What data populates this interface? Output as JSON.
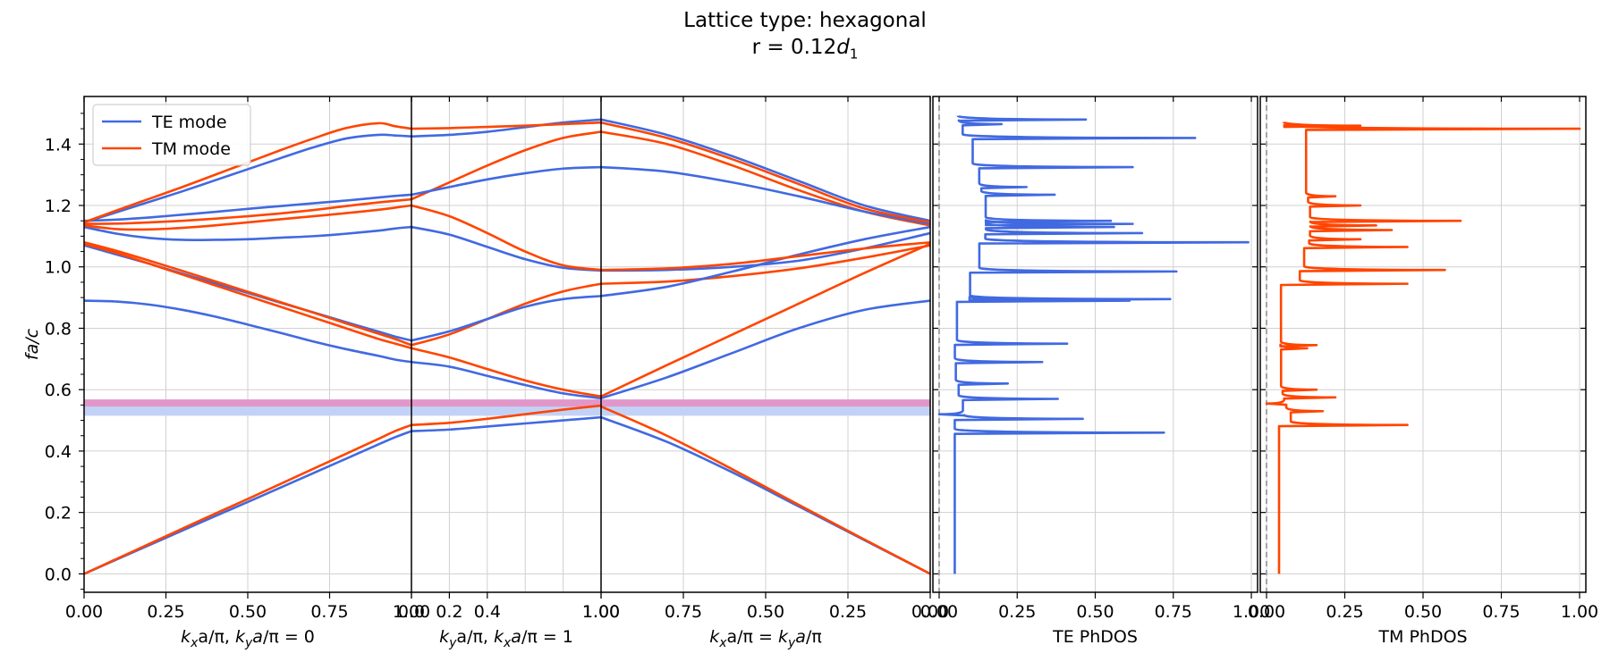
{
  "title": {
    "line1": "Lattice type: hexagonal",
    "line2_prefix": "r = 0.12",
    "line2_var": "d",
    "line2_sub": "1"
  },
  "colors": {
    "te": "#4169e1",
    "tm": "#ff4500",
    "gap_te": "#c2d2f7",
    "gap_tm": "#e394c6",
    "grid": "#d0d0d0"
  },
  "chart_data": [
    {
      "type": "line",
      "name": "band-structure",
      "ylabel": "fa/c",
      "ylim": [
        -0.06,
        1.555
      ],
      "yticks": [
        "0.0",
        "0.2",
        "0.4",
        "0.6",
        "0.8",
        "1.0",
        "1.2",
        "1.4"
      ],
      "legend": {
        "placement": "top-left",
        "entries": [
          "TE mode",
          "TM mode"
        ]
      },
      "bandgaps": [
        {
          "mode": "TE",
          "ymin": 0.515,
          "ymax": 0.568
        },
        {
          "mode": "TM",
          "ymin": 0.545,
          "ymax": 0.568
        }
      ],
      "segments": [
        {
          "xlabel": "k_xa/π, k_ya/π = 0",
          "xrange": [
            0,
            1
          ],
          "xticks": [
            "0.00",
            "0.25",
            "0.50",
            "0.75",
            "1.00"
          ],
          "x": [
            0,
            0.1,
            0.2,
            0.3,
            0.4,
            0.5,
            0.6,
            0.7,
            0.8,
            0.9,
            0.95,
            1.0
          ],
          "series": [
            {
              "mode": "TE",
              "values": [
                0.0,
                0.047,
                0.094,
                0.141,
                0.188,
                0.234,
                0.281,
                0.328,
                0.375,
                0.422,
                0.445,
                0.465
              ]
            },
            {
              "mode": "TM",
              "values": [
                0.0,
                0.049,
                0.098,
                0.147,
                0.196,
                0.244,
                0.293,
                0.342,
                0.391,
                0.44,
                0.465,
                0.485
              ]
            },
            {
              "mode": "TE",
              "values": [
                0.89,
                0.887,
                0.877,
                0.86,
                0.838,
                0.812,
                0.785,
                0.757,
                0.732,
                0.71,
                0.698,
                0.69
              ]
            },
            {
              "mode": "TE",
              "values": [
                1.07,
                1.04,
                1.01,
                0.978,
                0.946,
                0.915,
                0.883,
                0.852,
                0.82,
                0.789,
                0.773,
                0.76
              ]
            },
            {
              "mode": "TM",
              "values": [
                1.075,
                1.045,
                1.01,
                0.975,
                0.94,
                0.905,
                0.87,
                0.835,
                0.8,
                0.765,
                0.75,
                0.735
              ]
            },
            {
              "mode": "TM",
              "values": [
                1.08,
                1.052,
                1.02,
                0.987,
                0.953,
                0.919,
                0.885,
                0.851,
                0.816,
                0.782,
                0.765,
                0.745
              ]
            },
            {
              "mode": "TE",
              "values": [
                1.13,
                1.108,
                1.094,
                1.088,
                1.088,
                1.09,
                1.095,
                1.1,
                1.108,
                1.118,
                1.125,
                1.13
              ]
            },
            {
              "mode": "TM",
              "values": [
                1.135,
                1.123,
                1.122,
                1.127,
                1.135,
                1.145,
                1.155,
                1.165,
                1.175,
                1.186,
                1.193,
                1.2
              ]
            },
            {
              "mode": "TM",
              "values": [
                1.14,
                1.141,
                1.145,
                1.15,
                1.157,
                1.165,
                1.174,
                1.185,
                1.198,
                1.21,
                1.215,
                1.22
              ]
            },
            {
              "mode": "TE",
              "values": [
                1.15,
                1.154,
                1.161,
                1.17,
                1.179,
                1.189,
                1.198,
                1.207,
                1.216,
                1.226,
                1.231,
                1.235
              ]
            },
            {
              "mode": "TE",
              "values": [
                1.145,
                1.178,
                1.212,
                1.246,
                1.282,
                1.318,
                1.354,
                1.389,
                1.418,
                1.43,
                1.428,
                1.425
              ]
            },
            {
              "mode": "TM",
              "values": [
                1.145,
                1.184,
                1.222,
                1.26,
                1.3,
                1.34,
                1.38,
                1.418,
                1.452,
                1.468,
                1.458,
                1.45
              ]
            }
          ]
        },
        {
          "xlabel": "k_ya/π, k_xa/π = 1",
          "xrange": [
            0,
            1
          ],
          "xticks": [
            "0.0",
            "0.2",
            "0.4",
            "1.00"
          ],
          "x": [
            0,
            0.2,
            0.4,
            0.6,
            0.8,
            1.0
          ],
          "series": [
            {
              "mode": "TE",
              "values": [
                0.465,
                0.47,
                0.48,
                0.49,
                0.5,
                0.51
              ]
            },
            {
              "mode": "TM",
              "values": [
                0.485,
                0.492,
                0.505,
                0.52,
                0.535,
                0.548
              ]
            },
            {
              "mode": "TE",
              "values": [
                0.69,
                0.675,
                0.645,
                0.615,
                0.588,
                0.572
              ]
            },
            {
              "mode": "TM",
              "values": [
                0.735,
                0.705,
                0.667,
                0.63,
                0.6,
                0.578
              ]
            },
            {
              "mode": "TM",
              "values": [
                0.745,
                0.78,
                0.83,
                0.88,
                0.92,
                0.945
              ]
            },
            {
              "mode": "TE",
              "values": [
                0.76,
                0.79,
                0.83,
                0.87,
                0.895,
                0.905
              ]
            },
            {
              "mode": "TE",
              "values": [
                1.13,
                1.105,
                1.065,
                1.025,
                0.997,
                0.988
              ]
            },
            {
              "mode": "TM",
              "values": [
                1.2,
                1.165,
                1.11,
                1.05,
                1.005,
                0.99
              ]
            },
            {
              "mode": "TM",
              "values": [
                1.22,
                1.275,
                1.33,
                1.38,
                1.42,
                1.44
              ]
            },
            {
              "mode": "TE",
              "values": [
                1.235,
                1.26,
                1.285,
                1.305,
                1.32,
                1.325
              ]
            },
            {
              "mode": "TE",
              "values": [
                1.425,
                1.43,
                1.44,
                1.455,
                1.47,
                1.48
              ]
            },
            {
              "mode": "TM",
              "values": [
                1.45,
                1.452,
                1.456,
                1.46,
                1.465,
                1.47
              ]
            }
          ]
        },
        {
          "xlabel": "k_xa/π = k_ya/π",
          "xrange": [
            1,
            0
          ],
          "xticks": [
            "1.00",
            "0.75",
            "0.50",
            "0.25",
            "0.00"
          ],
          "x": [
            1.0,
            0.8,
            0.6,
            0.4,
            0.2,
            0.0
          ],
          "series": [
            {
              "mode": "TE",
              "values": [
                0.51,
                0.43,
                0.33,
                0.22,
                0.11,
                0.0
              ]
            },
            {
              "mode": "TM",
              "values": [
                0.545,
                0.45,
                0.34,
                0.225,
                0.112,
                0.0
              ]
            },
            {
              "mode": "TE",
              "values": [
                0.572,
                0.64,
                0.72,
                0.8,
                0.86,
                0.89
              ]
            },
            {
              "mode": "TM",
              "values": [
                0.578,
                0.68,
                0.78,
                0.88,
                0.98,
                1.075
              ]
            },
            {
              "mode": "TM",
              "values": [
                0.945,
                0.952,
                0.97,
                0.995,
                1.03,
                1.07
              ]
            },
            {
              "mode": "TE",
              "values": [
                0.905,
                0.935,
                0.985,
                1.04,
                1.09,
                1.13
              ]
            },
            {
              "mode": "TE",
              "values": [
                0.988,
                0.99,
                1.0,
                1.02,
                1.06,
                1.11
              ]
            },
            {
              "mode": "TM",
              "values": [
                0.99,
                0.995,
                1.01,
                1.035,
                1.06,
                1.08
              ]
            },
            {
              "mode": "TM",
              "values": [
                1.44,
                1.4,
                1.33,
                1.25,
                1.18,
                1.135
              ]
            },
            {
              "mode": "TE",
              "values": [
                1.325,
                1.31,
                1.275,
                1.23,
                1.18,
                1.14
              ]
            },
            {
              "mode": "TE",
              "values": [
                1.48,
                1.43,
                1.36,
                1.28,
                1.2,
                1.15
              ]
            },
            {
              "mode": "TM",
              "values": [
                1.47,
                1.42,
                1.35,
                1.27,
                1.19,
                1.145
              ]
            }
          ]
        }
      ]
    },
    {
      "type": "line",
      "name": "TE PhDOS",
      "xlabel": "TE PhDOS",
      "xlim": [
        -0.02,
        1.02
      ],
      "xticks": [
        "0.00",
        "0.25",
        "0.50",
        "0.75",
        "1.00"
      ],
      "baseline": 0.05,
      "peaks": [
        [
          0.46,
          0.72
        ],
        [
          0.505,
          0.46
        ],
        [
          0.52,
          0.0
        ],
        [
          0.57,
          0.38
        ],
        [
          0.62,
          0.22
        ],
        [
          0.69,
          0.33
        ],
        [
          0.75,
          0.41
        ],
        [
          0.89,
          0.61
        ],
        [
          0.895,
          0.74
        ],
        [
          0.985,
          0.76
        ],
        [
          1.08,
          0.99
        ],
        [
          1.11,
          0.65
        ],
        [
          1.13,
          0.56
        ],
        [
          1.14,
          0.62
        ],
        [
          1.15,
          0.55
        ],
        [
          1.235,
          0.37
        ],
        [
          1.26,
          0.28
        ],
        [
          1.325,
          0.62
        ],
        [
          1.42,
          0.82
        ],
        [
          1.465,
          0.2
        ],
        [
          1.48,
          0.47
        ]
      ]
    },
    {
      "type": "line",
      "name": "TM PhDOS",
      "xlabel": "TM PhDOS",
      "xlim": [
        -0.02,
        1.02
      ],
      "xticks": [
        "0.00",
        "0.25",
        "0.50",
        "0.75",
        "1.00"
      ],
      "baseline": 0.04,
      "peaks": [
        [
          0.485,
          0.45
        ],
        [
          0.53,
          0.18
        ],
        [
          0.555,
          0.0
        ],
        [
          0.575,
          0.22
        ],
        [
          0.6,
          0.16
        ],
        [
          0.735,
          0.13
        ],
        [
          0.745,
          0.16
        ],
        [
          0.945,
          0.45
        ],
        [
          0.99,
          0.57
        ],
        [
          1.065,
          0.45
        ],
        [
          1.09,
          0.3
        ],
        [
          1.12,
          0.4
        ],
        [
          1.135,
          0.35
        ],
        [
          1.15,
          0.62
        ],
        [
          1.2,
          0.3
        ],
        [
          1.23,
          0.22
        ],
        [
          1.45,
          1.0
        ],
        [
          1.46,
          0.3
        ]
      ]
    }
  ]
}
